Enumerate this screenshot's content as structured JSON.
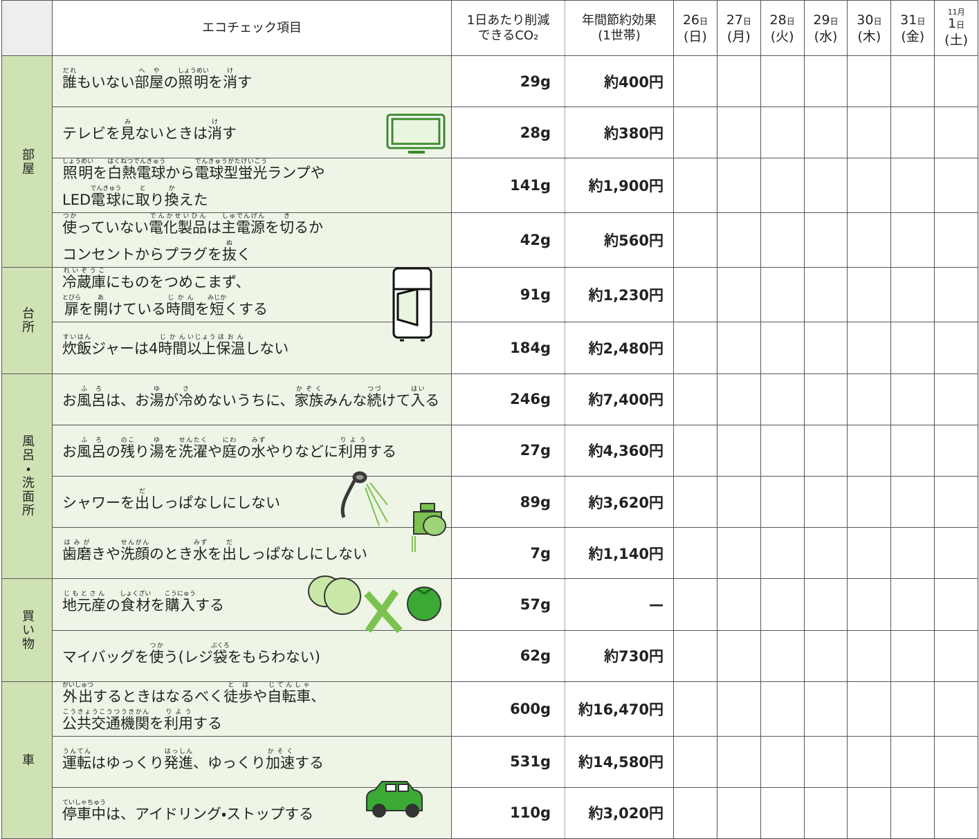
{
  "header": {
    "item": "エコチェック項目",
    "co2": [
      "1日あたり削減",
      "できるCO₂"
    ],
    "annual": [
      "年間節約効果",
      "(1世帯)"
    ],
    "days": [
      {
        "num": "26",
        "unit": "日",
        "dow": "(日)"
      },
      {
        "num": "27",
        "unit": "日",
        "dow": "(月)"
      },
      {
        "num": "28",
        "unit": "日",
        "dow": "(火)"
      },
      {
        "num": "29",
        "unit": "日",
        "dow": "(水)"
      },
      {
        "num": "30",
        "unit": "日",
        "dow": "(木)"
      },
      {
        "num": "31",
        "unit": "日",
        "dow": "(金)"
      },
      {
        "month": "11月",
        "num": "1",
        "unit": "日",
        "dow": "(土)"
      }
    ]
  },
  "groups": [
    {
      "category": "部屋",
      "items": [
        {
          "text": [
            [
              [
                "誰",
                "だれ"
              ],
              "もいない",
              [
                "部屋",
                "へや"
              ],
              "の",
              [
                "照明",
                "しょうめい"
              ],
              "を",
              [
                "消",
                "け"
              ],
              "す"
            ]
          ],
          "co2": "29g",
          "annual": "約400円"
        },
        {
          "text": [
            [
              "テレビを",
              [
                "見",
                "み"
              ],
              "ないときは",
              [
                "消",
                "け"
              ],
              "す"
            ]
          ],
          "co2": "28g",
          "annual": "約380円"
        },
        {
          "text": [
            [
              [
                "照明",
                "しょうめい"
              ],
              "を",
              [
                "白熱電球",
                "はくねつでんきゅう"
              ],
              "から",
              [
                "電球型蛍光",
                "でんきゅうがたけいこう"
              ],
              "ランプや"
            ],
            [
              "LED",
              [
                "電球",
                "でんきゅう"
              ],
              "に",
              [
                "取",
                "と"
              ],
              "り",
              [
                "換",
                "か"
              ],
              "えた"
            ]
          ],
          "co2": "141g",
          "annual": "約1,900円"
        },
        {
          "text": [
            [
              [
                "使",
                "つか"
              ],
              "っていない",
              [
                "電化製品",
                "でんかせいひん"
              ],
              "は",
              [
                "主電源",
                "しゅでんげん"
              ],
              "を",
              [
                "切",
                "き"
              ],
              "るか"
            ],
            [
              "コンセントからプラグを",
              [
                "抜",
                "ぬ"
              ],
              "く"
            ]
          ],
          "co2": "42g",
          "annual": "約560円"
        }
      ]
    },
    {
      "category": "台所",
      "items": [
        {
          "text": [
            [
              [
                "冷蔵庫",
                "れいぞうこ"
              ],
              "にものをつめこまず、"
            ],
            [
              [
                "扉",
                "とびら"
              ],
              "を",
              [
                "開",
                "あ"
              ],
              "けている",
              [
                "時間",
                "じかん"
              ],
              "を",
              [
                "短",
                "みじか"
              ],
              "くする"
            ]
          ],
          "co2": "91g",
          "annual": "約1,230円"
        },
        {
          "text": [
            [
              [
                "炊飯",
                "すいはん"
              ],
              "ジャーは4",
              [
                "時間",
                "じかん"
              ],
              [
                "以上",
                "いじょう"
              ],
              [
                "保温",
                "ほおん"
              ],
              "しない"
            ]
          ],
          "co2": "184g",
          "annual": "約2,480円"
        }
      ]
    },
    {
      "category": "風呂・洗面所",
      "items": [
        {
          "text": [
            [
              "お",
              [
                "風呂",
                "ふろ"
              ],
              "は、お",
              [
                "湯",
                "ゆ"
              ],
              "が",
              [
                "冷",
                "さ"
              ],
              "めないうちに、",
              [
                "家族",
                "かぞく"
              ],
              "みんな",
              [
                "続",
                "つづ"
              ],
              "けて",
              [
                "入",
                "はい"
              ],
              "る"
            ]
          ],
          "co2": "246g",
          "annual": "約7,400円"
        },
        {
          "text": [
            [
              "お",
              [
                "風呂",
                "ふろ"
              ],
              "の",
              [
                "残",
                "のこ"
              ],
              "り",
              [
                "湯",
                "ゆ"
              ],
              "を",
              [
                "洗濯",
                "せんたく"
              ],
              "や",
              [
                "庭",
                "にわ"
              ],
              "の",
              [
                "水",
                "みず"
              ],
              "やりなどに",
              [
                "利用",
                "りよう"
              ],
              "する"
            ]
          ],
          "co2": "27g",
          "annual": "約4,360円"
        },
        {
          "text": [
            [
              "シャワーを",
              [
                "出",
                "だ"
              ],
              "しっぱなしにしない"
            ]
          ],
          "co2": "89g",
          "annual": "約3,620円"
        },
        {
          "text": [
            [
              [
                "歯磨",
                "はみが"
              ],
              "きや",
              [
                "洗顔",
                "せんがん"
              ],
              "のとき",
              [
                "水",
                "みず"
              ],
              "を",
              [
                "出",
                "だ"
              ],
              "しっぱなしにしない"
            ]
          ],
          "co2": "7g",
          "annual": "約1,140円"
        }
      ]
    },
    {
      "category": "買い物",
      "items": [
        {
          "text": [
            [
              [
                "地元産",
                "じもとさん"
              ],
              "の",
              [
                "食材",
                "しょくざい"
              ],
              "を",
              [
                "購入",
                "こうにゅう"
              ],
              "する"
            ]
          ],
          "co2": "57g",
          "annual": "—"
        },
        {
          "text": [
            [
              "マイバッグを",
              [
                "使",
                "つか"
              ],
              "う(レジ",
              [
                "袋",
                "ぶくろ"
              ],
              "をもらわない)"
            ]
          ],
          "co2": "62g",
          "annual": "約730円"
        }
      ]
    },
    {
      "category": "車",
      "items": [
        {
          "text": [
            [
              [
                "外出",
                "がいしゅつ"
              ],
              "するときはなるべく",
              [
                "徒歩",
                "とほ"
              ],
              "や",
              [
                "自転車",
                "じてんしゃ"
              ],
              "、"
            ],
            [
              [
                "公共交通機関",
                "こうきょうこうつうきかん"
              ],
              "を",
              [
                "利用",
                "りよう"
              ],
              "する"
            ]
          ],
          "co2": "600g",
          "annual": "約16,470円"
        },
        {
          "text": [
            [
              [
                "運転",
                "うんてん"
              ],
              "はゆっくり",
              [
                "発進",
                "はっしん"
              ],
              "、ゆっくり",
              [
                "加速",
                "かそく"
              ],
              "する"
            ]
          ],
          "co2": "531g",
          "annual": "約14,580円"
        },
        {
          "text": [
            [
              [
                "停車中",
                "ていしゃちゅう"
              ],
              "は、アイドリング・ストップする"
            ]
          ],
          "co2": "110g",
          "annual": "約3,020円"
        }
      ]
    }
  ]
}
